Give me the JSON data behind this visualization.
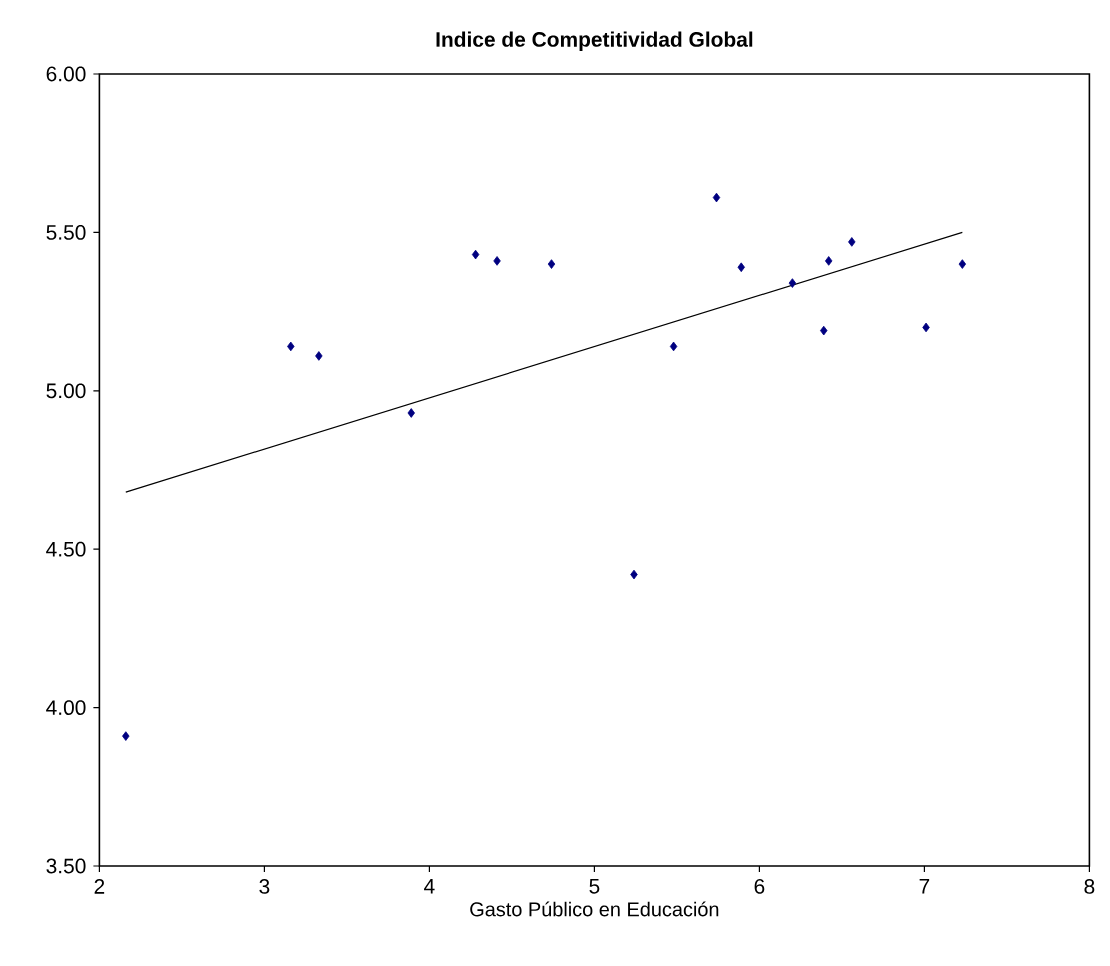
{
  "chart_data": {
    "type": "scatter",
    "title": "Indice de Competitividad Global",
    "xlabel": "Gasto Público en Educación",
    "xlim": [
      2,
      8
    ],
    "xticks": [
      2,
      3,
      4,
      5,
      6,
      7,
      8
    ],
    "ylim": [
      3.5,
      6
    ],
    "yticks": [
      {
        "value": 3.5,
        "label": "3.50"
      },
      {
        "value": 4,
        "label": "4.00"
      },
      {
        "value": 4.5,
        "label": "4.50"
      },
      {
        "value": 5,
        "label": "5.00"
      },
      {
        "value": 5.5,
        "label": "5.50"
      },
      {
        "value": 6,
        "label": "6.00"
      }
    ],
    "grid": false,
    "series": [
      {
        "color": "#000080",
        "marker": "diamond",
        "x": [
          2.16,
          3.16,
          3.33,
          3.89,
          4.28,
          4.41,
          4.74,
          5.24,
          5.48,
          5.74,
          5.89,
          6.2,
          6.39,
          6.42,
          6.56,
          7.01,
          7.23
        ],
        "values": [
          3.91,
          5.14,
          5.11,
          4.93,
          5.43,
          5.41,
          5.4,
          4.42,
          5.14,
          5.61,
          5.39,
          5.34,
          5.19,
          5.41,
          5.47,
          5.2,
          5.4
        ]
      },
      {
        "type": "line",
        "color": "#000000",
        "marker": "none",
        "line_style": "solid",
        "x": [
          2.16,
          7.23
        ],
        "values": [
          4.68,
          5.5
        ]
      }
    ]
  }
}
